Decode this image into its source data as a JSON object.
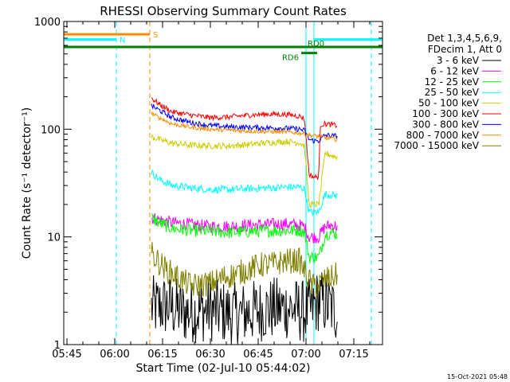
{
  "chart_data": {
    "type": "line",
    "title": "RHESSI Observing Summary Count Rates",
    "xlabel": "Start Time (02-Jul-10 05:44:02)",
    "ylabel": "Count Rate (s⁻¹ detector⁻¹)",
    "x_units": "minutes after 05:44:02",
    "xlim": [
      0,
      100
    ],
    "ylim": [
      1,
      1000
    ],
    "y_scale": "log",
    "x_ticks": [
      {
        "label": "05:45",
        "value": 1
      },
      {
        "label": "06:00",
        "value": 16
      },
      {
        "label": "06:15",
        "value": 31
      },
      {
        "label": "06:30",
        "value": 46
      },
      {
        "label": "06:45",
        "value": 61
      },
      {
        "label": "07:00",
        "value": 76
      },
      {
        "label": "07:15",
        "value": 91
      }
    ],
    "y_ticks": [
      {
        "label": "1",
        "value": 1
      },
      {
        "label": "10",
        "value": 10
      },
      {
        "label": "100",
        "value": 100
      },
      {
        "label": "1000",
        "value": 1000
      }
    ],
    "legend_header": [
      "Det 1,3,4,5,6,9,",
      "FDecim 1, Att 0"
    ],
    "series": [
      {
        "name": "3 - 6 keV",
        "color": "#000000",
        "x": [
          27.5,
          32.5,
          38,
          46,
          54,
          62,
          70,
          76,
          77.5,
          80,
          82,
          84,
          86
        ],
        "y": [
          2.2,
          2.3,
          2.0,
          2.1,
          1.9,
          2.1,
          2.2,
          2.0,
          2.1,
          2.6,
          2.4,
          2.2,
          2.0
        ]
      },
      {
        "name": "6 - 12 keV",
        "color": "#ff00ff",
        "x": [
          27.5,
          30,
          34,
          40,
          46,
          52,
          58,
          64,
          70,
          74,
          75.5,
          77,
          78.5,
          80,
          82,
          84,
          86
        ],
        "y": [
          15,
          14.5,
          13.5,
          13,
          12.5,
          12.5,
          12.8,
          13,
          13.2,
          12.8,
          12.5,
          10,
          10,
          10,
          12.5,
          12.8,
          12.5
        ]
      },
      {
        "name": "12 - 25 keV",
        "color": "#00ff00",
        "x": [
          27.5,
          30,
          34,
          40,
          46,
          52,
          58,
          64,
          70,
          74,
          75.5,
          77,
          78.5,
          80,
          82,
          84,
          86
        ],
        "y": [
          15,
          13.5,
          12,
          11.5,
          11.3,
          11,
          11.2,
          11.4,
          11.5,
          11.5,
          11.2,
          6.5,
          6.5,
          6.5,
          10.5,
          11,
          10.5
        ]
      },
      {
        "name": "25 - 50 keV",
        "color": "#00ffff",
        "x": [
          27.5,
          30,
          34,
          40,
          46,
          52,
          58,
          64,
          70,
          74,
          75.5,
          77,
          78.5,
          80,
          82,
          84,
          86
        ],
        "y": [
          40,
          34,
          30,
          28.5,
          27.5,
          27.5,
          28,
          28.5,
          29,
          29,
          28,
          17,
          17,
          17,
          25,
          24.5,
          24
        ]
      },
      {
        "name": "50 - 100 keV",
        "color": "#cccc00",
        "x": [
          27.5,
          30,
          34,
          40,
          46,
          52,
          58,
          64,
          70,
          74,
          75.5,
          77,
          78.5,
          80,
          82,
          84,
          86
        ],
        "y": [
          85,
          80,
          74,
          71,
          70,
          70,
          72,
          75,
          77,
          75,
          70,
          20,
          20,
          20,
          60,
          57,
          55
        ]
      },
      {
        "name": "100 - 300 keV",
        "color": "#ff0000",
        "x": [
          27.5,
          30,
          34,
          40,
          46,
          52,
          58,
          64,
          70,
          74,
          75.5,
          77,
          78.5,
          80,
          80.5,
          82,
          84,
          86
        ],
        "y": [
          195,
          170,
          145,
          135,
          128,
          130,
          135,
          138,
          137,
          132,
          125,
          38,
          36,
          36,
          110,
          112,
          110,
          108
        ]
      },
      {
        "name": "300 - 800 keV",
        "color": "#0000ff",
        "x": [
          27.5,
          30,
          34,
          40,
          46,
          52,
          58,
          64,
          70,
          74,
          75.5,
          77,
          78.5,
          80,
          82,
          84,
          86
        ],
        "y": [
          165,
          150,
          128,
          115,
          108,
          105,
          104,
          103,
          102,
          100,
          97,
          80,
          78,
          78,
          88,
          87,
          86
        ]
      },
      {
        "name": "800 - 7000 keV",
        "color": "#ff8c00",
        "x": [
          27.5,
          30,
          34,
          40,
          46,
          52,
          58,
          64,
          70,
          74,
          75.5,
          77,
          78.5,
          80,
          82,
          84,
          86
        ],
        "y": [
          140,
          128,
          112,
          104,
          100,
          98,
          96,
          95,
          94,
          92,
          91,
          88,
          87,
          86,
          83,
          82,
          80
        ]
      },
      {
        "name": "7000 - 15000 keV",
        "color": "#808000",
        "x": [
          27.5,
          32,
          40,
          46,
          50,
          54,
          58,
          62,
          66,
          70,
          74,
          76,
          78,
          80,
          82,
          84,
          86
        ],
        "y": [
          7,
          5,
          3.5,
          3.7,
          4.2,
          4.5,
          5.0,
          5.5,
          5.6,
          6.0,
          6.0,
          4.5,
          3.5,
          3.6,
          4.0,
          4.2,
          4.5
        ]
      }
    ],
    "vertical_lines": [
      {
        "x": 16.5,
        "color": "#00ffff",
        "style": "dashed"
      },
      {
        "x": 27.0,
        "color": "#ff8c00",
        "style": "dashed"
      },
      {
        "x": 76.0,
        "color": "#00ffff",
        "style": "solid"
      },
      {
        "x": 78.5,
        "color": "#00ffff",
        "style": "solid"
      },
      {
        "x": 96.5,
        "color": "#00ffff",
        "style": "dashed"
      }
    ],
    "flag_bars": [
      {
        "label": "S",
        "x": [
          0,
          27.0
        ],
        "y": 760,
        "color": "#ff8c00"
      },
      {
        "label": "N",
        "x": [
          0,
          16.5
        ],
        "y": 680,
        "color": "#00ffff"
      },
      {
        "label": "",
        "x": [
          78.5,
          100
        ],
        "y": 680,
        "color": "#00ffff"
      },
      {
        "label": "RD0",
        "x": [
          0,
          100
        ],
        "y": 580,
        "color": "#008000"
      },
      {
        "label": "RD6",
        "x": [
          74.5,
          79.5
        ],
        "y": 510,
        "color": "#008000"
      }
    ]
  },
  "footer": {
    "timestamp": "15-Oct-2021 05:48"
  }
}
